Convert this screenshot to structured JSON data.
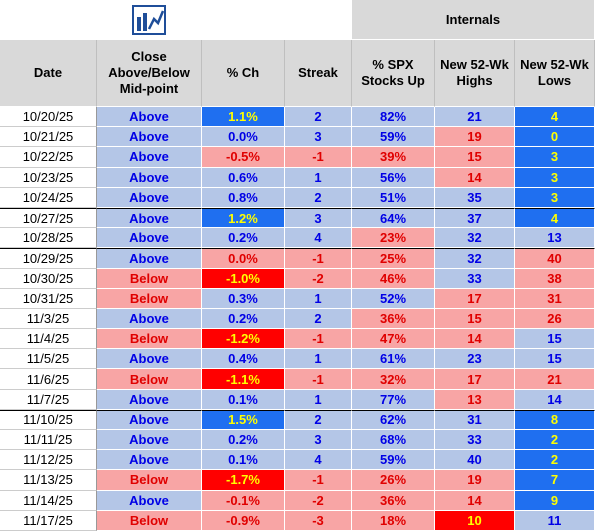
{
  "header": {
    "group_label": "Internals",
    "columns": [
      "Date",
      "Close Above/Below Mid-point",
      "% Ch",
      "Streak",
      "% SPX Stocks Up",
      "New 52-Wk Highs",
      "New 52-Wk Lows"
    ]
  },
  "palette": {
    "white": {
      "bg": "#ffffff",
      "fg": "#000000"
    },
    "blue": {
      "bg": "#b4c6e7",
      "fg": "#0000e6"
    },
    "pink": {
      "bg": "#f8a5a5",
      "fg": "#e00000"
    },
    "bright-blue": {
      "bg": "#1f6ff0",
      "fg": "#ffff00"
    },
    "bright-red": {
      "bg": "#ff0000",
      "fg": "#ffff00"
    }
  },
  "table": {
    "rows": [
      {
        "cells": [
          "10/20/25",
          "Above",
          "1.1%",
          "2",
          "82%",
          "21",
          "4"
        ],
        "fills": [
          "blue",
          "bright-blue",
          "blue",
          "blue",
          "blue",
          "bright-blue"
        ]
      },
      {
        "cells": [
          "10/21/25",
          "Above",
          "0.0%",
          "3",
          "59%",
          "19",
          "0"
        ],
        "fills": [
          "blue",
          "blue",
          "blue",
          "blue",
          "pink",
          "bright-blue"
        ]
      },
      {
        "cells": [
          "10/22/25",
          "Above",
          "-0.5%",
          "-1",
          "39%",
          "15",
          "3"
        ],
        "fills": [
          "blue",
          "pink",
          "pink",
          "pink",
          "pink",
          "bright-blue"
        ]
      },
      {
        "cells": [
          "10/23/25",
          "Above",
          "0.6%",
          "1",
          "56%",
          "14",
          "3"
        ],
        "fills": [
          "blue",
          "blue",
          "blue",
          "blue",
          "pink",
          "bright-blue"
        ]
      },
      {
        "cells": [
          "10/24/25",
          "Above",
          "0.8%",
          "2",
          "51%",
          "35",
          "3"
        ],
        "fills": [
          "blue",
          "blue",
          "blue",
          "blue",
          "blue",
          "bright-blue"
        ]
      },
      {
        "cells": [
          "10/27/25",
          "Above",
          "1.2%",
          "3",
          "64%",
          "37",
          "4"
        ],
        "fills": [
          "blue",
          "bright-blue",
          "blue",
          "blue",
          "blue",
          "bright-blue"
        ]
      },
      {
        "cells": [
          "10/28/25",
          "Above",
          "0.2%",
          "4",
          "23%",
          "32",
          "13"
        ],
        "fills": [
          "blue",
          "blue",
          "blue",
          "pink",
          "blue",
          "blue"
        ]
      },
      {
        "cells": [
          "10/29/25",
          "Above",
          "0.0%",
          "-1",
          "25%",
          "32",
          "40"
        ],
        "fills": [
          "blue",
          "pink",
          "pink",
          "pink",
          "blue",
          "pink"
        ]
      },
      {
        "cells": [
          "10/30/25",
          "Below",
          "-1.0%",
          "-2",
          "46%",
          "33",
          "38"
        ],
        "fills": [
          "pink",
          "bright-red",
          "pink",
          "pink",
          "blue",
          "pink"
        ]
      },
      {
        "cells": [
          "10/31/25",
          "Below",
          "0.3%",
          "1",
          "52%",
          "17",
          "31"
        ],
        "fills": [
          "pink",
          "blue",
          "blue",
          "blue",
          "pink",
          "pink"
        ]
      },
      {
        "cells": [
          "11/3/25",
          "Above",
          "0.2%",
          "2",
          "36%",
          "15",
          "26"
        ],
        "fills": [
          "blue",
          "blue",
          "blue",
          "pink",
          "pink",
          "pink"
        ]
      },
      {
        "cells": [
          "11/4/25",
          "Below",
          "-1.2%",
          "-1",
          "47%",
          "14",
          "15"
        ],
        "fills": [
          "pink",
          "bright-red",
          "pink",
          "pink",
          "pink",
          "blue"
        ]
      },
      {
        "cells": [
          "11/5/25",
          "Above",
          "0.4%",
          "1",
          "61%",
          "23",
          "15"
        ],
        "fills": [
          "blue",
          "blue",
          "blue",
          "blue",
          "blue",
          "blue"
        ]
      },
      {
        "cells": [
          "11/6/25",
          "Below",
          "-1.1%",
          "-1",
          "32%",
          "17",
          "21"
        ],
        "fills": [
          "pink",
          "bright-red",
          "pink",
          "pink",
          "pink",
          "pink"
        ]
      },
      {
        "cells": [
          "11/7/25",
          "Above",
          "0.1%",
          "1",
          "77%",
          "13",
          "14"
        ],
        "fills": [
          "blue",
          "blue",
          "blue",
          "blue",
          "pink",
          "blue"
        ]
      },
      {
        "cells": [
          "11/10/25",
          "Above",
          "1.5%",
          "2",
          "62%",
          "31",
          "8"
        ],
        "fills": [
          "blue",
          "bright-blue",
          "blue",
          "blue",
          "blue",
          "bright-blue"
        ]
      },
      {
        "cells": [
          "11/11/25",
          "Above",
          "0.2%",
          "3",
          "68%",
          "33",
          "2"
        ],
        "fills": [
          "blue",
          "blue",
          "blue",
          "blue",
          "blue",
          "bright-blue"
        ]
      },
      {
        "cells": [
          "11/12/25",
          "Above",
          "0.1%",
          "4",
          "59%",
          "40",
          "2"
        ],
        "fills": [
          "blue",
          "blue",
          "blue",
          "blue",
          "blue",
          "bright-blue"
        ]
      },
      {
        "cells": [
          "11/13/25",
          "Below",
          "-1.7%",
          "-1",
          "26%",
          "19",
          "7"
        ],
        "fills": [
          "pink",
          "bright-red",
          "pink",
          "pink",
          "pink",
          "bright-blue"
        ]
      },
      {
        "cells": [
          "11/14/25",
          "Above",
          "-0.1%",
          "-2",
          "36%",
          "14",
          "9"
        ],
        "fills": [
          "blue",
          "pink",
          "pink",
          "pink",
          "pink",
          "bright-blue"
        ]
      },
      {
        "cells": [
          "11/17/25",
          "Below",
          "-0.9%",
          "-3",
          "18%",
          "10",
          "11"
        ],
        "fills": [
          "pink",
          "pink",
          "pink",
          "pink",
          "bright-red",
          "blue"
        ]
      }
    ]
  }
}
